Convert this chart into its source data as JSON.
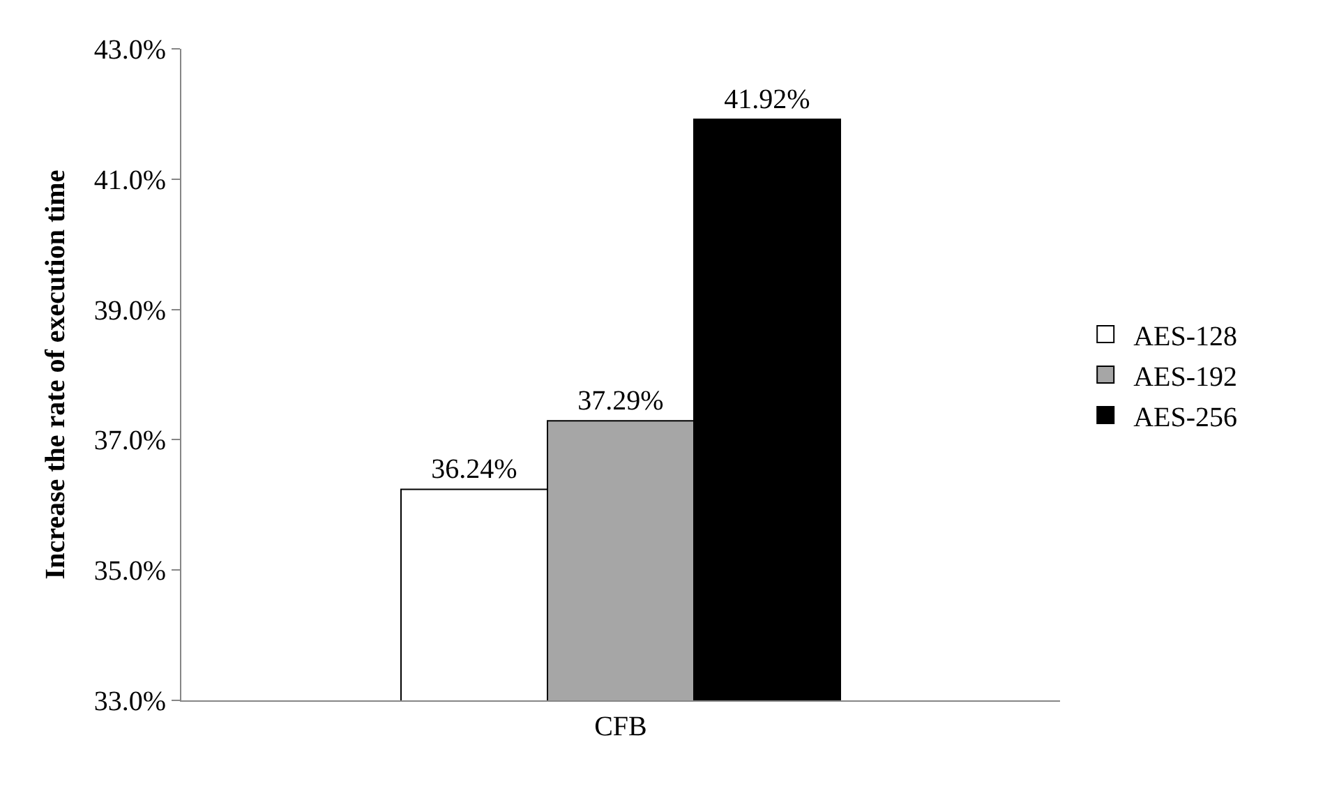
{
  "chart_data": {
    "type": "bar",
    "ylabel": "Increase the rate of execution time",
    "categories": [
      "CFB"
    ],
    "series": [
      {
        "name": "AES-128",
        "color": "#ffffff",
        "values": [
          36.24
        ],
        "value_labels": [
          "36.24%"
        ]
      },
      {
        "name": "AES-192",
        "color": "#a6a6a6",
        "values": [
          37.29
        ],
        "value_labels": [
          "37.29%"
        ]
      },
      {
        "name": "AES-256",
        "color": "#000000",
        "values": [
          41.92
        ],
        "value_labels": [
          "41.92%"
        ]
      }
    ],
    "ylim": [
      33,
      43
    ],
    "yticks": [
      {
        "value": 33,
        "label": "33.0%"
      },
      {
        "value": 35,
        "label": "35.0%"
      },
      {
        "value": 37,
        "label": "37.0%"
      },
      {
        "value": 39,
        "label": "39.0%"
      },
      {
        "value": 41,
        "label": "41.0%"
      },
      {
        "value": 43,
        "label": "43.0%"
      }
    ],
    "grid": false,
    "legend": "right"
  }
}
